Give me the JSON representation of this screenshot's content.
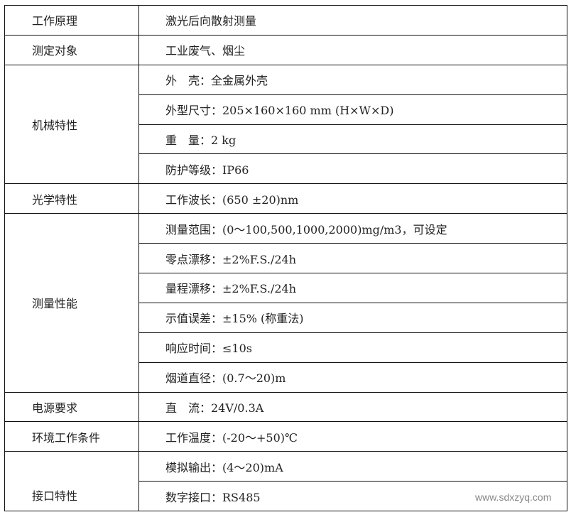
{
  "rows": [
    {
      "label": "工作原理",
      "values": [
        "激光后向散射测量"
      ]
    },
    {
      "label": "测定对象",
      "values": [
        "工业废气、烟尘"
      ]
    },
    {
      "label": "机械特性",
      "values": [
        "外　壳：全金属外壳",
        "外型尺寸：205×160×160 mm (H×W×D)",
        "重　量：2 kg",
        "防护等级：IP66"
      ]
    },
    {
      "label": "光学特性",
      "values": [
        "工作波长：(650 ±20)nm"
      ]
    },
    {
      "label": "测量性能",
      "values": [
        "测量范围：(0～100,500,1000,2000)mg/m3，可设定",
        "零点漂移：±2%F.S./24h",
        "量程漂移：±2%F.S./24h",
        "示值误差：±15% (称重法)",
        "响应时间：≤10s",
        "烟道直径：(0.7～20)m"
      ]
    },
    {
      "label": "电源要求",
      "values": [
        "直　流：24V/0.3A"
      ]
    },
    {
      "label": "环境工作条件",
      "values": [
        "工作温度：(-20～+50)℃"
      ]
    },
    {
      "label": "接口特性",
      "values": [
        "模拟输出：(4～20)mA",
        "数字接口：RS485"
      ]
    }
  ],
  "watermark": "www.sdxzyq.com"
}
